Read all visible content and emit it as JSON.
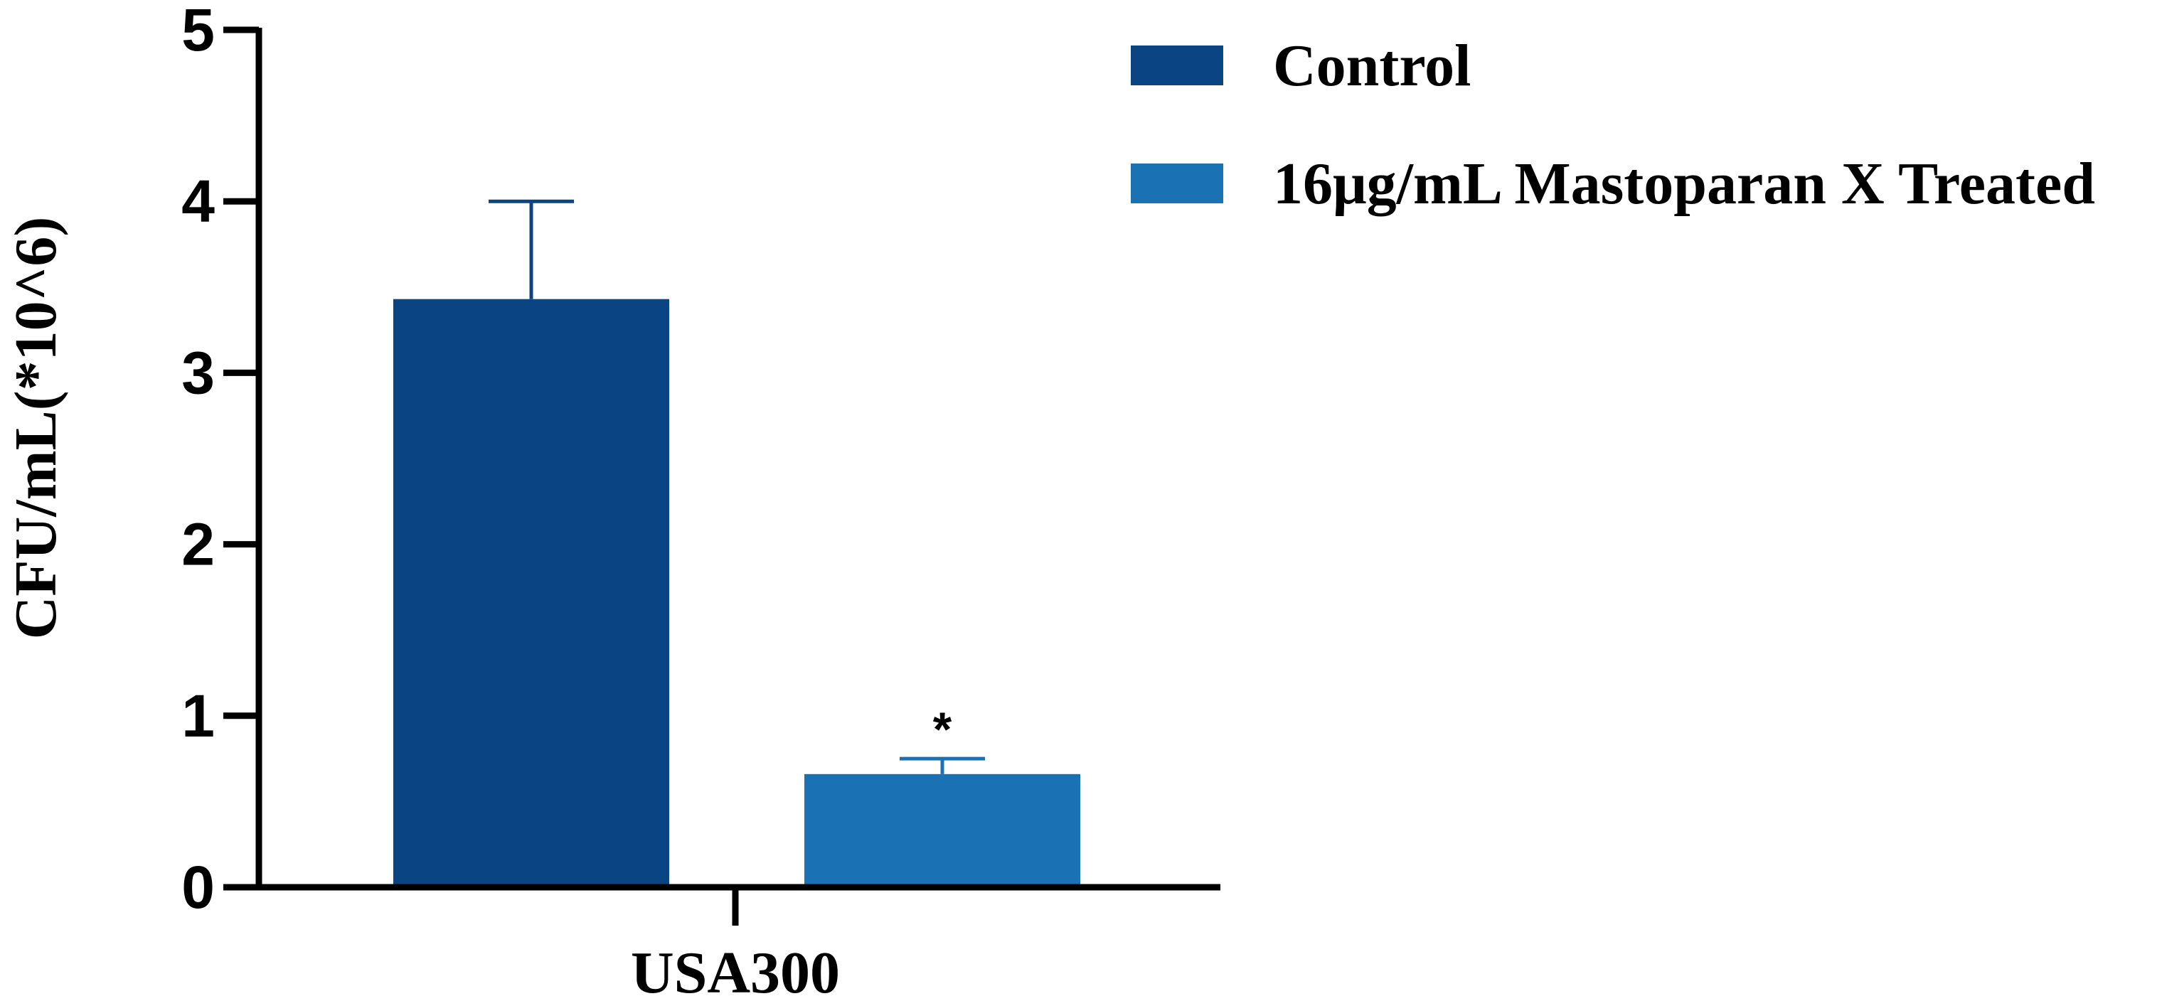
{
  "chart_data": {
    "type": "bar",
    "group": "USA300",
    "ylabel": "CFU/mL(*10^6)",
    "xlabel": "",
    "ylim": [
      0,
      5
    ],
    "yticks": [
      0,
      1,
      2,
      3,
      4,
      5
    ],
    "grid": false,
    "legend_position": "top-right",
    "series": [
      {
        "name": "Control",
        "value": 3.43,
        "error": 0.57,
        "color": "#0b4483",
        "annotation": ""
      },
      {
        "name": "16μg/mL Mastoparan X Treated",
        "value": 0.66,
        "error": 0.09,
        "color": "#1a72b4",
        "annotation": "*"
      }
    ]
  }
}
